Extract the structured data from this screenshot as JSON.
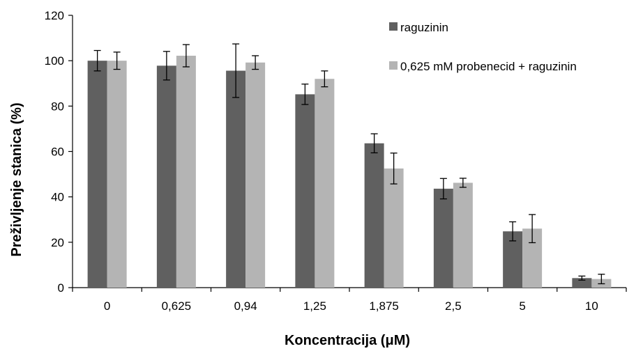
{
  "chart_data": {
    "type": "bar",
    "categories": [
      "0",
      "0,625",
      "0,94",
      "1,25",
      "1,875",
      "2,5",
      "5",
      "10"
    ],
    "series": [
      {
        "name": "raguzinin",
        "color": "#606060",
        "values": [
          100,
          97.8,
          95.6,
          85.2,
          63.6,
          43.6,
          24.8,
          4.2
        ],
        "errors": [
          4.5,
          6.3,
          11.8,
          4.5,
          4.2,
          4.5,
          4.2,
          0.9
        ]
      },
      {
        "name": "0,625 mM probenecid + raguzinin",
        "color": "#b4b4b4",
        "values": [
          100,
          102.2,
          99.2,
          92.0,
          52.5,
          46.2,
          26.0,
          3.8
        ],
        "errors": [
          3.8,
          4.9,
          3.0,
          3.5,
          6.8,
          2.0,
          6.2,
          2.1
        ]
      }
    ],
    "title": "",
    "xlabel": "Koncentracija (μM)",
    "ylabel": "Preživljenje stanica (%)",
    "ylim": [
      0,
      120
    ],
    "yticks": [
      "0",
      "20",
      "40",
      "60",
      "80",
      "100",
      "120"
    ],
    "grid": false,
    "legend_position": "top-right"
  }
}
